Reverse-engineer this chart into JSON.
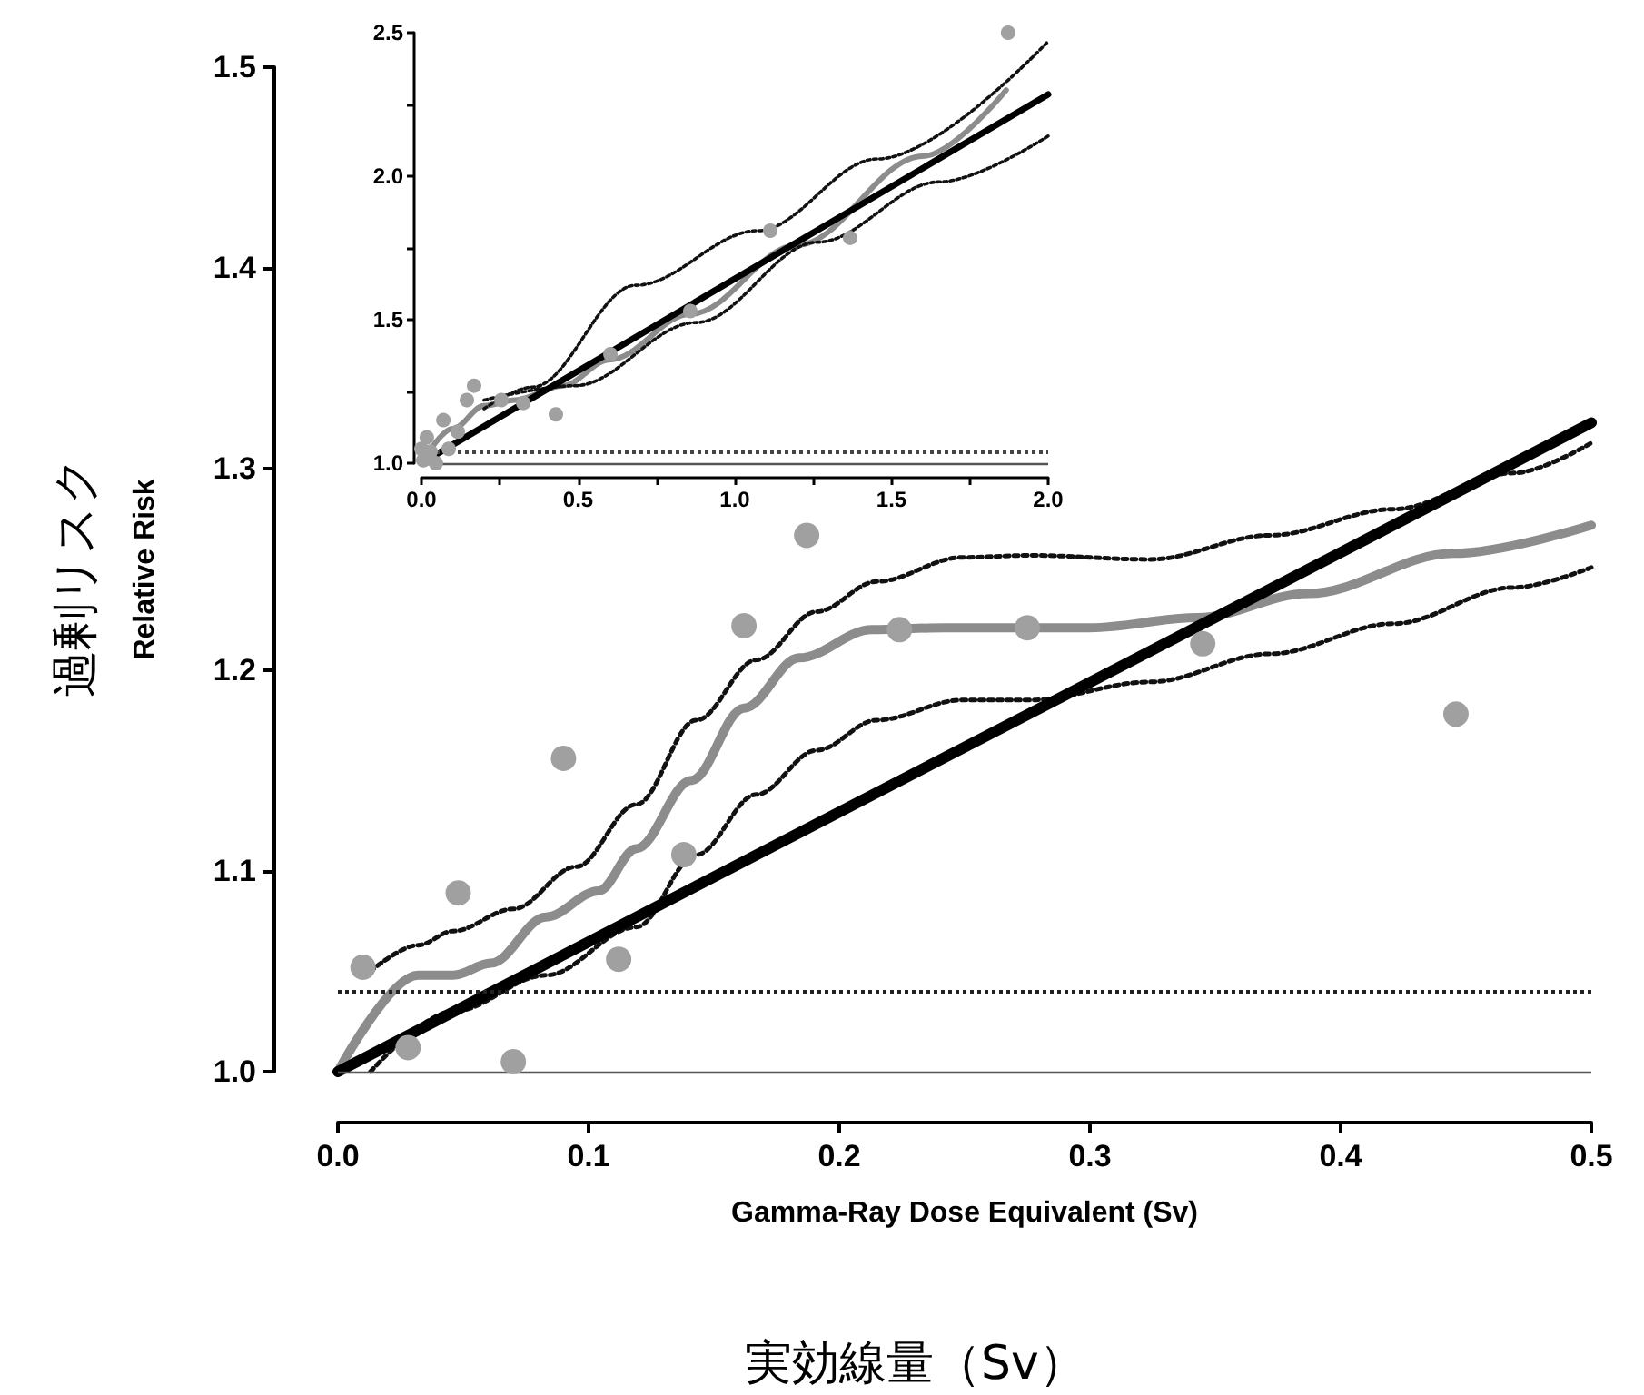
{
  "chart_data": [
    {
      "type": "line",
      "xlabel": "Gamma-Ray Dose Equivalent (Sv)",
      "ylabel": "Relative Risk",
      "annotations": [
        "過剰リスク",
        "実効線量（Sv）"
      ],
      "xlim": [
        0,
        0.5
      ],
      "ylim": [
        1,
        1.5
      ],
      "xticks": [
        {
          "value": 0,
          "label": "0.0"
        },
        0.1,
        0.2,
        0.3,
        0.4,
        0.5
      ],
      "yticks": [
        {
          "value": 1,
          "label": "1.0"
        },
        1.1,
        1.2,
        1.3,
        1.4,
        1.5
      ],
      "grid": false,
      "ref_lines": [
        {
          "axis": "y",
          "value": 1,
          "color": "#555555",
          "line_style": "solid"
        },
        {
          "axis": "y",
          "value": 1.04,
          "color": "#222222",
          "line_style": "dotted"
        }
      ],
      "series": [
        {
          "type": "line",
          "color": "#000000",
          "line_style": "solid",
          "marker": "none",
          "x": [
            0,
            0.5
          ],
          "values": [
            1,
            1.323
          ]
        },
        {
          "type": "line",
          "color": "#8c8c8c",
          "line_style": "solid",
          "marker": "none",
          "x": [
            0,
            0.032,
            0.046,
            0.061,
            0.083,
            0.104,
            0.119,
            0.141,
            0.162,
            0.184,
            0.213,
            0.242,
            0.3,
            0.343,
            0.387,
            0.445,
            0.5
          ],
          "values": [
            1,
            1.048,
            1.048,
            1.054,
            1.077,
            1.09,
            1.111,
            1.145,
            1.181,
            1.206,
            1.22,
            1.221,
            1.221,
            1.226,
            1.238,
            1.258,
            1.272
          ]
        },
        {
          "type": "line",
          "color": "#111111",
          "line_style": "dotted",
          "marker": "none",
          "x": [
            0.013,
            0.032,
            0.046,
            0.07,
            0.095,
            0.119,
            0.143,
            0.167,
            0.191,
            0.215,
            0.249,
            0.276,
            0.324,
            0.372,
            0.421,
            0.469,
            0.5
          ],
          "values": [
            1.05,
            1.063,
            1.07,
            1.081,
            1.102,
            1.133,
            1.175,
            1.205,
            1.229,
            1.244,
            1.256,
            1.257,
            1.255,
            1.267,
            1.28,
            1.298,
            1.313
          ]
        },
        {
          "type": "line",
          "color": "#111111",
          "line_style": "dotted",
          "marker": "none",
          "x": [
            0.013,
            0.046,
            0.083,
            0.119,
            0.143,
            0.167,
            0.191,
            0.215,
            0.249,
            0.276,
            0.324,
            0.372,
            0.421,
            0.469,
            0.5
          ],
          "values": [
            1,
            1.03,
            1.048,
            1.072,
            1.108,
            1.138,
            1.16,
            1.175,
            1.185,
            1.185,
            1.194,
            1.208,
            1.223,
            1.241,
            1.251
          ]
        },
        {
          "type": "scatter",
          "color": "#a0a0a0",
          "marker": "circle",
          "x": [
            0.01,
            0.028,
            0.048,
            0.07,
            0.09,
            0.112,
            0.138,
            0.162,
            0.187,
            0.224,
            0.275,
            0.345,
            0.446
          ],
          "values": [
            1.052,
            1.012,
            1.089,
            1.005,
            1.156,
            1.056,
            1.108,
            1.222,
            1.267,
            1.22,
            1.221,
            1.213,
            1.178
          ]
        }
      ]
    },
    {
      "type": "line",
      "xlim": [
        0,
        2
      ],
      "ylim": [
        1,
        2.5
      ],
      "xticks": [
        {
          "value": 0,
          "label": "0.0"
        },
        {
          "value": 0.25,
          "label": null
        },
        0.5,
        {
          "value": 0.75,
          "label": null
        },
        {
          "value": 1,
          "label": "1.0"
        },
        {
          "value": 1.25,
          "label": null
        },
        1.5,
        {
          "value": 1.75,
          "label": null
        },
        {
          "value": 2,
          "label": "2.0"
        }
      ],
      "yticks": [
        {
          "value": 1,
          "label": "1.0"
        },
        {
          "value": 1.25,
          "label": null
        },
        1.5,
        {
          "value": 1.75,
          "label": null
        },
        {
          "value": 2,
          "label": "2.0"
        },
        {
          "value": 2.25,
          "label": null
        },
        2.5
      ],
      "grid": false,
      "ref_lines": [
        {
          "axis": "y",
          "value": 1,
          "color": "#555555",
          "line_style": "solid"
        },
        {
          "axis": "y",
          "value": 1.04,
          "color": "#444444",
          "line_style": "dotted"
        }
      ],
      "series": [
        {
          "type": "line",
          "color": "#000000",
          "line_style": "solid",
          "marker": "none",
          "x": [
            0,
            2
          ],
          "values": [
            1,
            2.285
          ]
        },
        {
          "type": "line",
          "color": "#8c8c8c",
          "line_style": "solid",
          "marker": "none",
          "x": [
            0,
            0.1,
            0.2,
            0.3,
            0.45,
            0.6,
            0.86,
            1.2,
            1.6,
            1.866
          ],
          "values": [
            1,
            1.12,
            1.2,
            1.22,
            1.27,
            1.36,
            1.52,
            1.76,
            2.07,
            2.3
          ]
        },
        {
          "type": "line",
          "color": "#111111",
          "line_style": "dotted",
          "marker": "none",
          "x": [
            0.2,
            0.354,
            0.684,
            1.072,
            1.455,
            2
          ],
          "values": [
            1.19,
            1.265,
            1.62,
            1.81,
            2.06,
            2.47
          ]
        },
        {
          "type": "line",
          "color": "#111111",
          "line_style": "dotted",
          "marker": "none",
          "x": [
            0.2,
            0.49,
            0.876,
            1.264,
            1.652,
            2
          ],
          "values": [
            1.22,
            1.27,
            1.49,
            1.77,
            1.98,
            2.14
          ]
        },
        {
          "type": "scatter",
          "color": "#a0a0a0",
          "marker": "circle",
          "x": [
            1.872,
            1.113,
            1.368,
            0.858,
            0.603,
            0.429,
            0.325,
            0.255,
            0.168,
            0.145,
            0.07,
            0.116,
            0.017,
            0,
            0.087,
            0.029,
            0.046,
            0.006
          ],
          "values": [
            2.5,
            1.81,
            1.785,
            1.53,
            1.38,
            1.17,
            1.21,
            1.22,
            1.27,
            1.22,
            1.15,
            1.11,
            1.09,
            1.05,
            1.05,
            1.04,
            1,
            1.01
          ]
        }
      ]
    }
  ]
}
